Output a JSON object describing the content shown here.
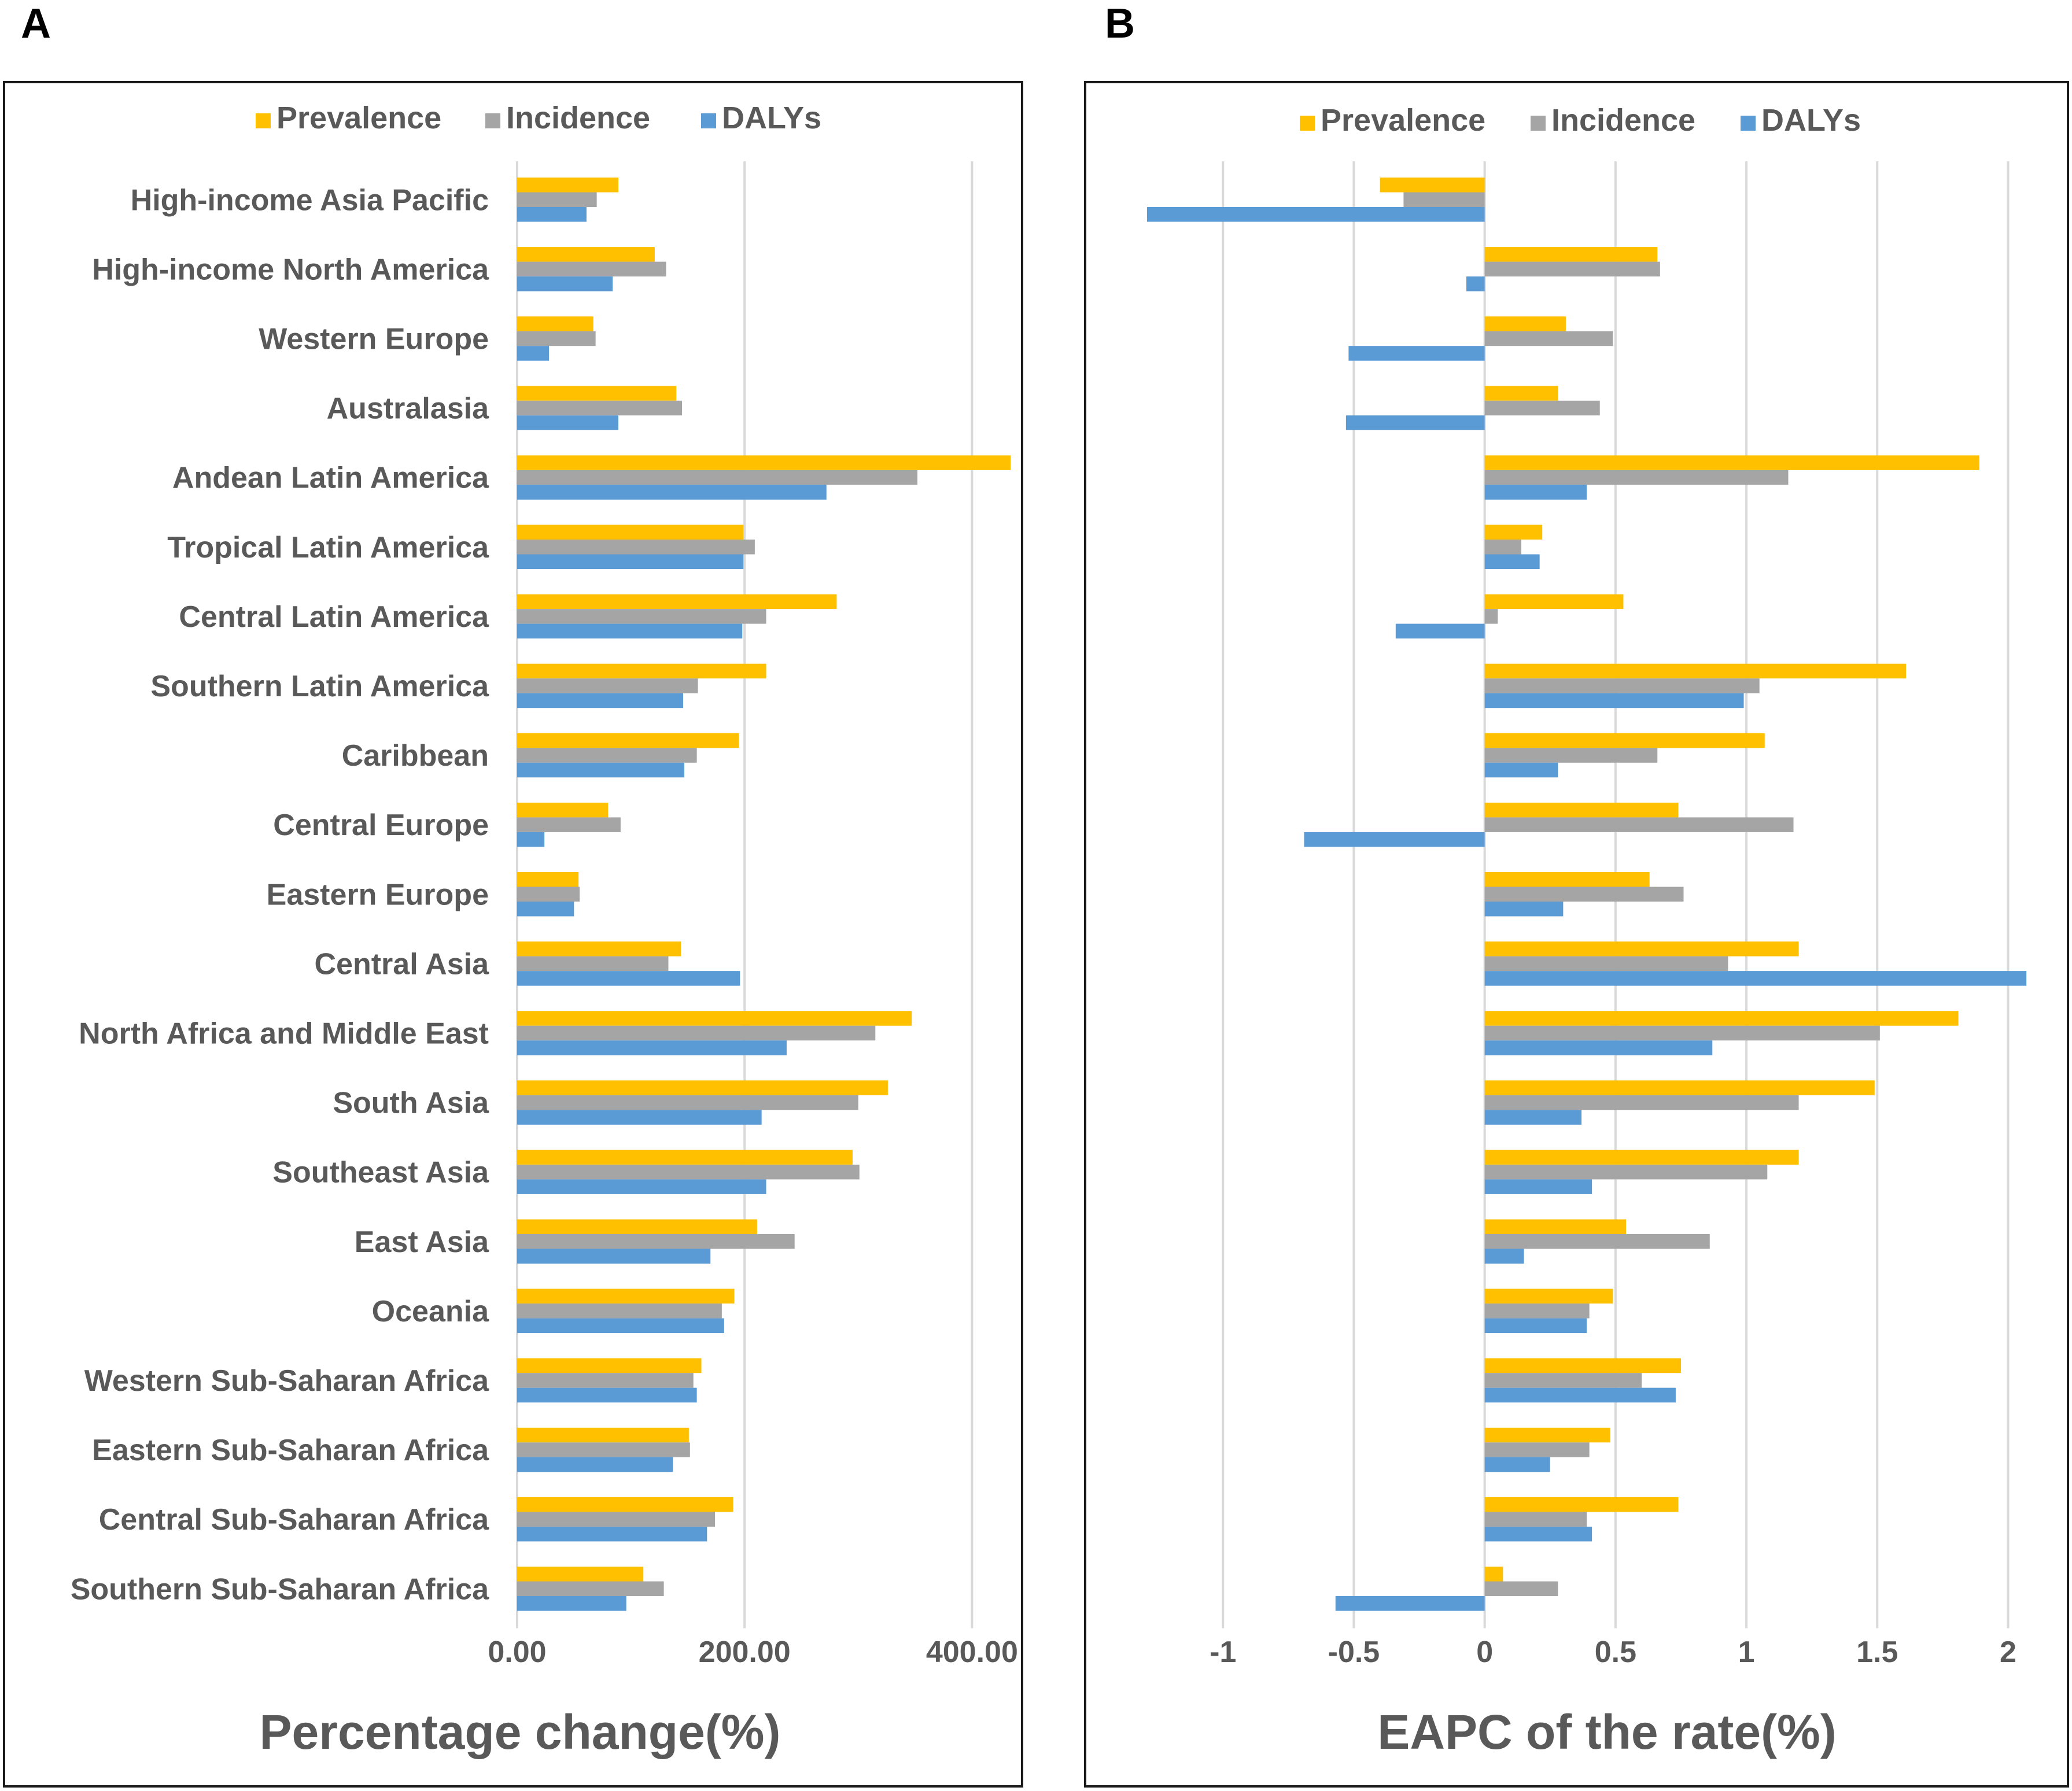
{
  "panels": {
    "a_letter": "A",
    "b_letter": "B"
  },
  "colors": {
    "Prevalence": "#FFC000",
    "Incidence": "#A5A5A5",
    "DALYs": "#5B9BD5"
  },
  "chart_data": [
    {
      "id": "A",
      "type": "bar",
      "orientation": "horizontal",
      "title": "",
      "xlabel": "Percentage change(%)",
      "ylabel": "",
      "xlim": [
        0,
        440
      ],
      "xticks": [
        0,
        200,
        400
      ],
      "xtick_labels": [
        "0.00",
        "200.00",
        "400.00"
      ],
      "grid": true,
      "legend_position": "top",
      "categories": [
        "High-income Asia Pacific",
        "High-income North America",
        "Western Europe",
        "Australasia",
        "Andean Latin America",
        "Tropical Latin America",
        "Central Latin America",
        "Southern Latin America",
        "Caribbean",
        "Central Europe",
        "Eastern Europe",
        "Central Asia",
        "North Africa and Middle East",
        "South Asia",
        "Southeast Asia",
        "East Asia",
        "Oceania",
        "Western Sub-Saharan Africa",
        "Eastern Sub-Saharan Africa",
        "Central Sub-Saharan Africa",
        "Southern Sub-Saharan Africa"
      ],
      "series": [
        {
          "name": "Prevalence",
          "values": [
            89,
            121,
            67,
            140,
            434,
            199,
            281,
            219,
            195,
            80,
            54,
            144,
            347,
            326,
            295,
            211,
            191,
            162,
            151,
            190,
            111
          ]
        },
        {
          "name": "Incidence",
          "values": [
            70,
            131,
            69,
            145,
            352,
            209,
            219,
            159,
            158,
            91,
            55,
            133,
            315,
            300,
            301,
            244,
            180,
            155,
            152,
            174,
            129
          ]
        },
        {
          "name": "DALYs",
          "values": [
            61,
            84,
            28,
            89,
            272,
            199,
            198,
            146,
            147,
            24,
            50,
            196,
            237,
            215,
            219,
            170,
            182,
            158,
            137,
            167,
            96
          ]
        }
      ]
    },
    {
      "id": "B",
      "type": "bar",
      "orientation": "horizontal",
      "title": "",
      "xlabel": "EAPC of the rate(%)",
      "ylabel": "",
      "xlim": [
        -1.5,
        2.2
      ],
      "xticks": [
        -1,
        -0.5,
        0,
        0.5,
        1,
        1.5,
        2
      ],
      "xtick_labels": [
        "-1",
        "-0.5",
        "0",
        "0.5",
        "1",
        "1.5",
        "2"
      ],
      "grid": true,
      "legend_position": "top",
      "categories": [
        "High-income Asia Pacific",
        "High-income North America",
        "Western Europe",
        "Australasia",
        "Andean Latin America",
        "Tropical Latin America",
        "Central Latin America",
        "Southern Latin America",
        "Caribbean",
        "Central Europe",
        "Eastern Europe",
        "Central Asia",
        "North Africa and Middle East",
        "South Asia",
        "Southeast Asia",
        "East Asia",
        "Oceania",
        "Western Sub-Saharan Africa",
        "Eastern Sub-Saharan Africa",
        "Central Sub-Saharan Africa",
        "Southern Sub-Saharan Africa"
      ],
      "series": [
        {
          "name": "Prevalence",
          "values": [
            -0.4,
            0.66,
            0.31,
            0.28,
            1.89,
            0.22,
            0.53,
            1.61,
            1.07,
            0.74,
            0.63,
            1.2,
            1.81,
            1.49,
            1.2,
            0.54,
            0.49,
            0.75,
            0.48,
            0.74,
            0.07
          ]
        },
        {
          "name": "Incidence",
          "values": [
            -0.31,
            0.67,
            0.49,
            0.44,
            1.16,
            0.14,
            0.05,
            1.05,
            0.66,
            1.18,
            0.76,
            0.93,
            1.51,
            1.2,
            1.08,
            0.86,
            0.4,
            0.6,
            0.4,
            0.39,
            0.28
          ]
        },
        {
          "name": "DALYs",
          "values": [
            -1.29,
            -0.07,
            -0.52,
            -0.53,
            0.39,
            0.21,
            -0.34,
            0.99,
            0.28,
            -0.69,
            0.3,
            2.07,
            0.87,
            0.37,
            0.41,
            0.15,
            0.39,
            0.73,
            0.25,
            0.41,
            -0.57
          ]
        }
      ]
    }
  ]
}
